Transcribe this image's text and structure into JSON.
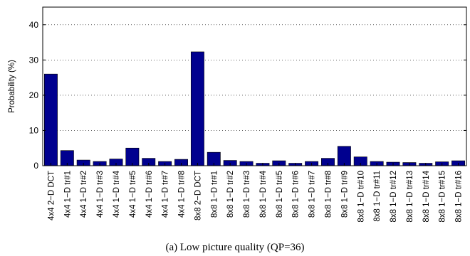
{
  "chart_data": {
    "type": "bar",
    "categories": [
      "4x4 2−D DCT",
      "4x4 1−D tr#1",
      "4x4 1−D tr#2",
      "4x4 1−D tr#3",
      "4x4 1−D tr#4",
      "4x4 1−D tr#5",
      "4x4 1−D tr#6",
      "4x4 1−D tr#7",
      "4x4 1−D tr#8",
      "8x8 2−D DCT",
      "8x8 1−D tr#1",
      "8x8 1−D tr#2",
      "8x8 1−D tr#3",
      "8x8 1−D tr#4",
      "8x8 1−D tr#5",
      "8x8 1−D tr#6",
      "8x8 1−D tr#7",
      "8x8 1−D tr#8",
      "8x8 1−D tr#9",
      "8x8 1−D tr#10",
      "8x8 1−D tr#11",
      "8x8 1−D tr#12",
      "8x8 1−D tr#13",
      "8x8 1−D tr#14",
      "8x8 1−D tr#15",
      "8x8 1−D tr#16"
    ],
    "values": [
      26.0,
      4.3,
      1.6,
      1.2,
      1.9,
      5.0,
      2.1,
      1.2,
      1.8,
      32.3,
      3.8,
      1.5,
      1.2,
      0.7,
      1.4,
      0.7,
      1.2,
      2.1,
      5.5,
      2.5,
      1.2,
      1.0,
      0.9,
      0.7,
      1.1,
      1.4
    ],
    "ylabel": "Probability (%)",
    "xlabel": "",
    "ylim": [
      0,
      45
    ],
    "yticks": [
      0,
      10,
      20,
      30,
      40
    ],
    "grid": true,
    "bar_color": "#00008f",
    "caption": "(a) Low picture quality (QP=36)"
  }
}
